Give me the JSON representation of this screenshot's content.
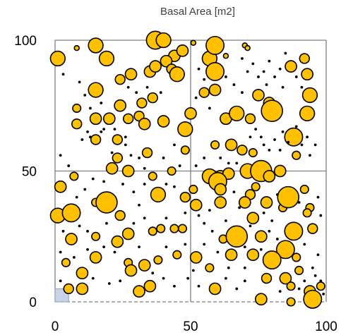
{
  "chart_data": {
    "type": "scatter",
    "title": "Basal Area [m2]",
    "xlabel": "",
    "ylabel": "",
    "xlim": [
      0,
      100
    ],
    "ylim": [
      0,
      100
    ],
    "x_ticks": [
      "0",
      "50",
      "100"
    ],
    "y_ticks": [
      "0",
      "50",
      "100"
    ],
    "grid": true,
    "legend": "none",
    "marker_color": "#FFC000",
    "marker_edge": "#000000",
    "gridline_color": "#808080",
    "quadrat_color": "#C9D3E8",
    "points": [
      [
        1,
        93,
        2.7
      ],
      [
        8,
        97,
        0.9
      ],
      [
        15,
        98,
        2.7
      ],
      [
        19,
        93,
        2.7
      ],
      [
        37,
        100,
        3.3
      ],
      [
        40,
        100,
        2.7
      ],
      [
        44,
        94,
        2.1
      ],
      [
        47,
        96,
        2.1
      ],
      [
        51,
        99,
        0.9
      ],
      [
        57,
        93,
        2.7
      ],
      [
        59,
        98,
        3.3
      ],
      [
        63,
        94,
        0.9
      ],
      [
        70,
        98,
        0.9
      ],
      [
        71,
        97,
        0.9
      ],
      [
        24,
        85,
        1.8
      ],
      [
        28,
        87,
        2.1
      ],
      [
        35,
        88,
        2.1
      ],
      [
        37,
        90,
        2.1
      ],
      [
        41,
        92,
        2.1
      ],
      [
        43,
        89,
        1.8
      ],
      [
        45,
        87,
        2.7
      ],
      [
        59,
        88,
        3.3
      ],
      [
        87,
        90,
        2.1
      ],
      [
        92,
        93,
        1.8
      ],
      [
        93,
        87,
        2.1
      ],
      [
        15,
        81,
        2.7
      ],
      [
        24,
        75,
        2.1
      ],
      [
        32,
        76,
        1.8
      ],
      [
        36,
        78,
        1.8
      ],
      [
        55,
        80,
        1.8
      ],
      [
        59,
        81,
        2.1
      ],
      [
        75,
        79,
        2.1
      ],
      [
        79,
        76,
        2.1
      ],
      [
        80,
        73,
        3.9
      ],
      [
        94,
        79,
        2.7
      ],
      [
        8,
        74,
        1.5
      ],
      [
        15,
        70,
        2.1
      ],
      [
        20,
        70,
        2.1
      ],
      [
        27,
        70,
        1.8
      ],
      [
        31,
        71,
        1.8
      ],
      [
        33,
        68,
        2.1
      ],
      [
        40,
        69,
        2.1
      ],
      [
        50,
        72,
        2.1
      ],
      [
        48,
        66,
        2.7
      ],
      [
        63,
        70,
        2.1
      ],
      [
        67,
        72,
        2.7
      ],
      [
        72,
        70,
        1.8
      ],
      [
        93,
        72,
        2.7
      ],
      [
        88,
        63,
        3.3
      ],
      [
        8,
        68,
        1.8
      ],
      [
        15,
        62,
        1.8
      ],
      [
        23,
        62,
        1.8
      ],
      [
        34,
        57,
        1.8
      ],
      [
        48,
        58,
        1.5
      ],
      [
        59,
        60,
        1.5
      ],
      [
        65,
        60,
        2.1
      ],
      [
        69,
        58,
        1.8
      ],
      [
        73,
        57,
        1.5
      ],
      [
        89,
        56,
        1.5
      ],
      [
        23,
        55,
        1.8
      ],
      [
        21,
        51,
        2.1
      ],
      [
        27,
        50,
        2.1
      ],
      [
        36,
        48,
        1.5
      ],
      [
        43,
        50,
        1.5
      ],
      [
        57,
        48,
        2.7
      ],
      [
        61,
        48,
        2.1
      ],
      [
        64,
        49,
        2.1
      ],
      [
        71,
        50,
        2.7
      ],
      [
        76,
        50,
        3.9
      ],
      [
        79,
        48,
        2.1
      ],
      [
        83,
        50,
        2.1
      ],
      [
        7,
        48,
        1.5
      ],
      [
        2,
        44,
        2.1
      ],
      [
        38,
        41,
        2.7
      ],
      [
        48,
        40,
        1.8
      ],
      [
        51,
        43,
        1.5
      ],
      [
        60,
        46,
        3.3
      ],
      [
        61,
        43,
        2.1
      ],
      [
        72,
        41,
        1.8
      ],
      [
        74,
        44,
        1.5
      ],
      [
        92,
        43,
        1.5
      ],
      [
        1,
        33,
        2.7
      ],
      [
        6,
        34,
        3.3
      ],
      [
        15,
        38,
        1.5
      ],
      [
        19,
        38,
        3.9
      ],
      [
        24,
        33,
        1.8
      ],
      [
        39,
        28,
        1.5
      ],
      [
        52,
        37,
        2.1
      ],
      [
        61,
        38,
        2.1
      ],
      [
        70,
        38,
        2.1
      ],
      [
        78,
        38,
        2.1
      ],
      [
        84,
        36,
        1.5
      ],
      [
        86,
        40,
        3.9
      ],
      [
        94,
        36,
        1.5
      ],
      [
        95,
        28,
        1.8
      ],
      [
        93,
        34,
        1.5
      ],
      [
        6,
        24,
        2.1
      ],
      [
        15,
        25,
        1.5
      ],
      [
        23,
        23,
        2.1
      ],
      [
        27,
        26,
        2.1
      ],
      [
        36,
        27,
        1.5
      ],
      [
        44,
        28,
        1.5
      ],
      [
        47,
        28,
        1.5
      ],
      [
        62,
        24,
        1.5
      ],
      [
        67,
        25,
        3.9
      ],
      [
        73,
        32,
        2.1
      ],
      [
        76,
        25,
        2.1
      ],
      [
        88,
        27,
        3.3
      ],
      [
        85,
        20,
        3.3
      ],
      [
        80,
        16,
        3.3
      ],
      [
        4,
        15,
        1.5
      ],
      [
        10,
        11,
        2.1
      ],
      [
        15,
        17,
        2.1
      ],
      [
        27,
        15,
        1.5
      ],
      [
        33,
        14,
        2.1
      ],
      [
        38,
        16,
        1.5
      ],
      [
        45,
        18,
        1.5
      ],
      [
        52,
        17,
        2.1
      ],
      [
        57,
        13,
        1.5
      ],
      [
        65,
        18,
        2.1
      ],
      [
        73,
        18,
        2.1
      ],
      [
        89,
        17,
        1.5
      ],
      [
        90,
        12,
        1.5
      ],
      [
        5,
        5,
        1.8
      ],
      [
        10,
        5,
        2.1
      ],
      [
        28,
        12,
        2.1
      ],
      [
        31,
        4,
        2.1
      ],
      [
        35,
        6,
        2.1
      ],
      [
        59,
        5,
        2.1
      ],
      [
        78,
        9,
        1.8
      ],
      [
        85,
        9,
        2.1
      ],
      [
        87,
        6,
        1.5
      ],
      [
        76,
        1,
        2.1
      ],
      [
        87,
        0,
        1.5
      ],
      [
        94,
        4,
        2.1
      ],
      [
        95,
        1,
        3.3
      ],
      [
        98,
        6,
        1.5
      ],
      [
        3,
        87,
        0.5
      ],
      [
        9,
        84,
        0.5
      ],
      [
        11,
        79,
        0.5
      ],
      [
        13,
        74,
        0.5
      ],
      [
        17,
        76,
        0.5
      ],
      [
        10,
        62,
        0.5
      ],
      [
        12,
        65,
        0.5
      ],
      [
        13,
        63,
        0.5
      ],
      [
        17,
        65,
        0.5
      ],
      [
        18,
        66,
        0.5
      ],
      [
        22,
        66,
        0.5
      ],
      [
        26,
        63,
        0.5
      ],
      [
        28,
        56,
        0.5
      ],
      [
        2,
        56,
        0.5
      ],
      [
        5,
        52,
        0.5
      ],
      [
        26,
        60,
        0.5
      ],
      [
        21,
        57,
        0.5
      ],
      [
        31,
        55,
        0.5
      ],
      [
        33,
        51,
        0.5
      ],
      [
        40,
        55,
        0.5
      ],
      [
        44,
        60,
        0.5
      ],
      [
        46,
        52,
        0.5
      ],
      [
        52,
        52,
        0.5
      ],
      [
        55,
        55,
        0.5
      ],
      [
        61,
        55,
        0.5
      ],
      [
        64,
        53,
        0.5
      ],
      [
        67,
        53,
        0.5
      ],
      [
        72,
        63,
        0.5
      ],
      [
        74,
        66,
        0.5
      ],
      [
        76,
        63,
        0.5
      ],
      [
        77,
        60,
        0.5
      ],
      [
        79,
        58,
        0.5
      ],
      [
        81,
        62,
        0.5
      ],
      [
        83,
        58,
        0.5
      ],
      [
        84,
        65,
        0.5
      ],
      [
        86,
        61,
        0.5
      ],
      [
        89,
        67,
        0.5
      ],
      [
        91,
        60,
        0.5
      ],
      [
        93,
        63,
        0.5
      ],
      [
        96,
        60,
        0.5
      ],
      [
        94,
        56,
        0.5
      ],
      [
        69,
        93,
        0.5
      ],
      [
        71,
        88,
        0.5
      ],
      [
        73,
        91,
        0.5
      ],
      [
        75,
        86,
        0.5
      ],
      [
        77,
        88,
        0.5
      ],
      [
        79,
        92,
        0.5
      ],
      [
        81,
        86,
        0.5
      ],
      [
        83,
        89,
        0.5
      ],
      [
        85,
        95,
        0.5
      ],
      [
        89,
        86,
        0.5
      ],
      [
        91,
        82,
        0.5
      ],
      [
        84,
        82,
        0.5
      ],
      [
        78,
        83,
        0.5
      ],
      [
        53,
        89,
        0.5
      ],
      [
        55,
        85,
        0.5
      ],
      [
        63,
        86,
        0.5
      ],
      [
        66,
        83,
        0.5
      ],
      [
        69,
        80,
        0.5
      ],
      [
        52,
        78,
        0.5
      ],
      [
        57,
        74,
        0.5
      ],
      [
        34,
        82,
        0.5
      ],
      [
        39,
        80,
        0.5
      ],
      [
        30,
        80,
        0.5
      ],
      [
        27,
        82,
        0.5
      ],
      [
        8,
        40,
        0.5
      ],
      [
        11,
        43,
        0.5
      ],
      [
        14,
        47,
        0.5
      ],
      [
        18,
        46,
        0.5
      ],
      [
        25,
        45,
        0.5
      ],
      [
        29,
        42,
        0.5
      ],
      [
        31,
        37,
        0.5
      ],
      [
        33,
        45,
        0.5
      ],
      [
        41,
        45,
        0.5
      ],
      [
        44,
        44,
        0.5
      ],
      [
        53,
        33,
        0.5
      ],
      [
        57,
        35,
        0.5
      ],
      [
        66,
        42,
        0.5
      ],
      [
        68,
        36,
        0.5
      ],
      [
        77,
        34,
        0.5
      ],
      [
        80,
        31,
        0.5
      ],
      [
        82,
        41,
        0.5
      ],
      [
        90,
        38,
        0.5
      ],
      [
        97,
        40,
        0.5
      ],
      [
        98,
        33,
        0.5
      ],
      [
        3,
        27,
        0.5
      ],
      [
        9,
        29,
        0.5
      ],
      [
        12,
        27,
        0.5
      ],
      [
        19,
        30,
        0.5
      ],
      [
        29,
        30,
        0.5
      ],
      [
        33,
        32,
        0.5
      ],
      [
        41,
        32,
        0.5
      ],
      [
        48,
        34,
        0.5
      ],
      [
        55,
        30,
        0.5
      ],
      [
        58,
        27,
        0.5
      ],
      [
        63,
        31,
        0.5
      ],
      [
        72,
        29,
        0.5
      ],
      [
        79,
        27,
        0.5
      ],
      [
        82,
        24,
        0.5
      ],
      [
        92,
        22,
        0.5
      ],
      [
        97,
        18,
        0.5
      ],
      [
        2,
        19,
        0.5
      ],
      [
        7,
        17,
        0.5
      ],
      [
        12,
        20,
        0.5
      ],
      [
        18,
        21,
        0.5
      ],
      [
        22,
        19,
        0.5
      ],
      [
        31,
        21,
        0.5
      ],
      [
        41,
        21,
        0.5
      ],
      [
        48,
        22,
        0.5
      ],
      [
        55,
        22,
        0.5
      ],
      [
        60,
        19,
        0.5
      ],
      [
        70,
        21,
        0.5
      ],
      [
        76,
        20,
        0.5
      ],
      [
        2,
        8,
        0.5
      ],
      [
        14,
        9,
        0.5
      ],
      [
        20,
        7,
        0.5
      ],
      [
        24,
        8,
        0.5
      ],
      [
        40,
        9,
        0.5
      ],
      [
        44,
        6,
        0.5
      ],
      [
        49,
        9,
        0.5
      ],
      [
        53,
        6,
        0.5
      ],
      [
        63,
        9,
        0.5
      ],
      [
        67,
        5,
        0.5
      ],
      [
        70,
        8,
        0.5
      ],
      [
        83,
        4,
        0.5
      ],
      [
        90,
        5,
        0.5
      ],
      [
        92,
        8,
        0.5
      ],
      [
        96,
        10,
        0.5
      ],
      [
        99,
        3,
        0.5
      ],
      [
        98,
        8,
        0.5
      ],
      [
        64,
        13,
        0.5
      ],
      [
        36,
        11,
        0.5
      ],
      [
        51,
        12,
        0.5
      ],
      [
        70,
        13,
        0.5
      ],
      [
        95,
        13,
        0.5
      ]
    ]
  }
}
